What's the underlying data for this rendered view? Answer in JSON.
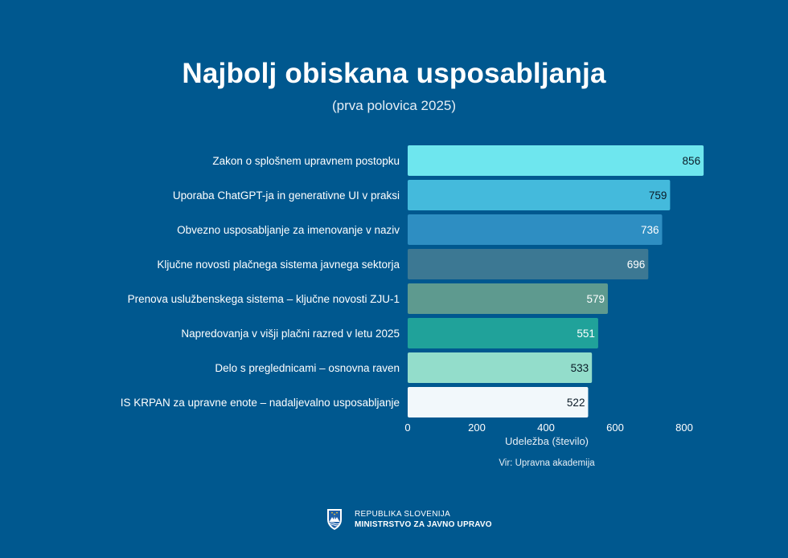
{
  "header": {
    "title": "Najbolj obiskana usposabljanja",
    "subtitle": "(prva polovica 2025)"
  },
  "chart_data": {
    "type": "bar",
    "orientation": "horizontal",
    "title": "Najbolj obiskana usposabljanja",
    "subtitle": "(prva polovica 2025)",
    "xlabel": "Udeležba (število)",
    "ylabel": "",
    "xlim": [
      0,
      800
    ],
    "x_ticks": [
      0,
      200,
      400,
      600,
      800
    ],
    "grid": false,
    "data_labels": true,
    "categories": [
      "Zakon o splošnem upravnem postopku",
      "Uporaba ChatGPT-ja in generativne UI v praksi",
      "Obvezno usposabljanje za imenovanje v naziv",
      "Ključne novosti plačnega sistema javnega sektorja",
      "Prenova uslužbenskega sistema – ključne novosti ZJU-1",
      "Napredovanja v višji plačni razred v letu 2025",
      "Delo s preglednicami – osnovna raven",
      "IS KRPAN za upravne enote – nadaljevalno usposabljanje"
    ],
    "values": [
      856,
      759,
      736,
      696,
      579,
      551,
      533,
      522
    ],
    "bar_colors": [
      "#6EE6EE",
      "#44BADC",
      "#2E8EC2",
      "#3C7893",
      "#5E9A8F",
      "#20A29A",
      "#93DDCB",
      "#F2F8FB"
    ],
    "label_colors": [
      "#0A1A26",
      "#0A1A26",
      "#FFFFFF",
      "#FFFFFF",
      "#FFFFFF",
      "#FFFFFF",
      "#0A1A26",
      "#0A1A26"
    ]
  },
  "source": "Vir: Upravna akademija",
  "footer": {
    "line1": "REPUBLIKA SLOVENIJA",
    "line2": "MINISTRSTVO ZA JAVNO UPRAVO",
    "crest_icon": "slovenia-coat-of-arms-icon"
  }
}
